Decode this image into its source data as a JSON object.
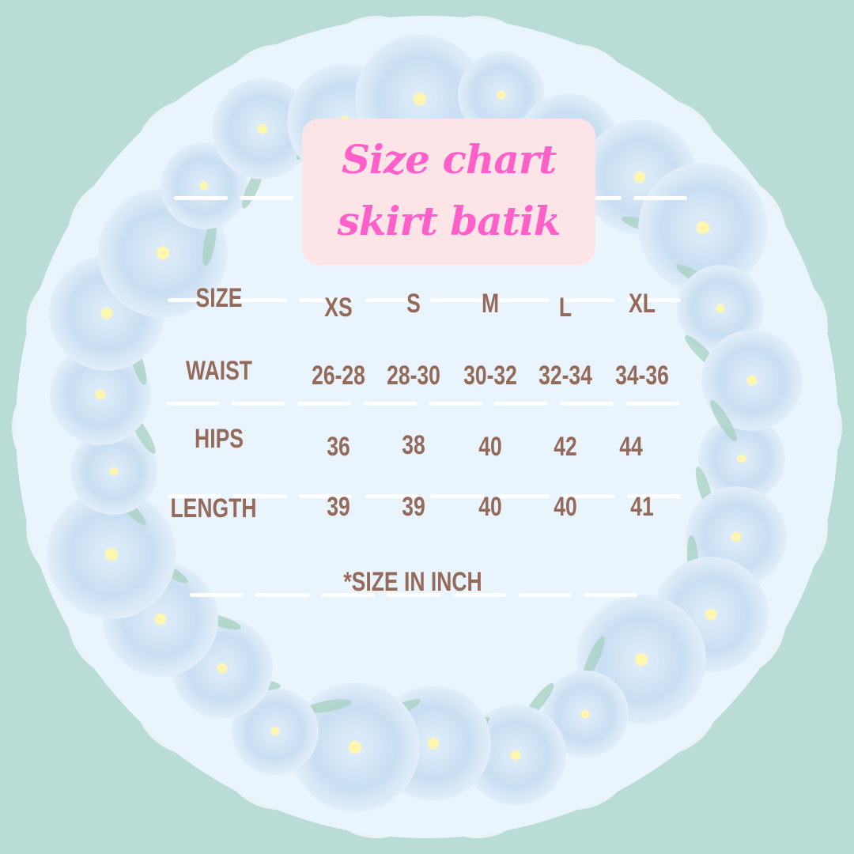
{
  "title": {
    "line1": "Size chart",
    "line2": "skirt batik"
  },
  "colors": {
    "background": "#b9ddd6",
    "panel": "#eaf4fd",
    "title_text": "#ff5fc8",
    "title_box": "#fde4e6",
    "table_text": "#946a5a"
  },
  "table": {
    "header_label": "SIZE",
    "sizes": [
      "XS",
      "S",
      "M",
      "L",
      "XL"
    ],
    "rows": [
      {
        "label": "WAIST",
        "values": [
          "26-28",
          "28-30",
          "30-32",
          "32-34",
          "34-36"
        ]
      },
      {
        "label": "HIPS",
        "values": [
          "36",
          "38",
          "40",
          "42",
          "44"
        ]
      },
      {
        "label": "LENGTH",
        "values": [
          "39",
          "39",
          "40",
          "40",
          "41"
        ]
      }
    ]
  },
  "footnote": "*SIZE IN INCH"
}
